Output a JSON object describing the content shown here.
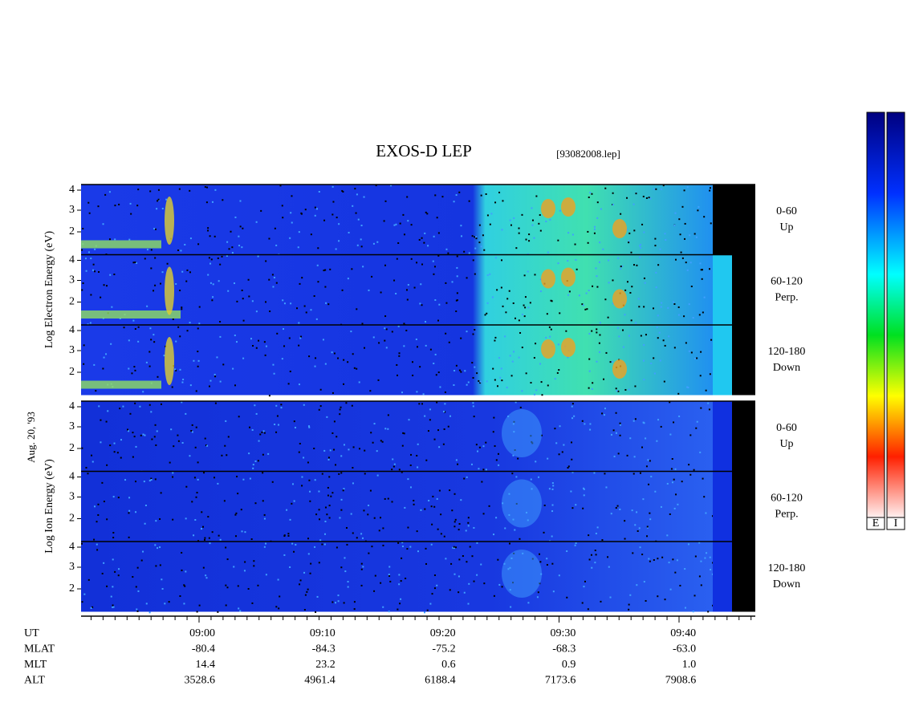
{
  "header": {
    "title": "EXOS-D LEP",
    "file": "[93082008.lep]",
    "date": "Aug. 20, '93"
  },
  "groups": [
    {
      "axis_label": "Log Electron Energy (eV)",
      "panels": [
        {
          "ticks": [
            "4",
            "3",
            "2"
          ],
          "angle": "0-60",
          "direction": "Up"
        },
        {
          "ticks": [
            "4",
            "3",
            "2"
          ],
          "angle": "60-120",
          "direction": "Perp."
        },
        {
          "ticks": [
            "4",
            "3",
            "2"
          ],
          "angle": "120-180",
          "direction": "Down"
        }
      ]
    },
    {
      "axis_label": "Log Ion Energy (eV)",
      "panels": [
        {
          "ticks": [
            "4",
            "3",
            "2"
          ],
          "angle": "0-60",
          "direction": "Up"
        },
        {
          "ticks": [
            "4",
            "3",
            "2"
          ],
          "angle": "60-120",
          "direction": "Perp."
        },
        {
          "ticks": [
            "4",
            "3",
            "2"
          ],
          "angle": "120-180",
          "direction": "Down"
        }
      ]
    }
  ],
  "orbit": {
    "labels": [
      "UT",
      "MLAT",
      "MLT",
      "ALT"
    ],
    "columns": [
      [
        "09:00",
        "-80.4",
        "14.4",
        "3528.6"
      ],
      [
        "09:10",
        "-84.3",
        "23.2",
        "4961.4"
      ],
      [
        "09:20",
        "-75.2",
        "0.6",
        "6188.4"
      ],
      [
        "09:30",
        "-68.3",
        "0.9",
        "7173.6"
      ],
      [
        "09:40",
        "-63.0",
        "1.0",
        "7908.6"
      ]
    ]
  },
  "colorbars": [
    "E",
    "I"
  ]
}
